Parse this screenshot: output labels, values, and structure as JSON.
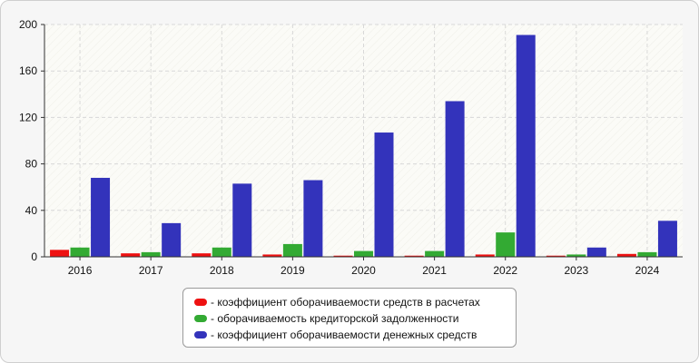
{
  "chart_data": {
    "type": "bar",
    "categories": [
      "2016",
      "2017",
      "2018",
      "2019",
      "2020",
      "2021",
      "2022",
      "2023",
      "2024"
    ],
    "series": [
      {
        "name": "- коэффициент оборачиваемости средств в расчетах",
        "color": "#ee1111",
        "values": [
          6,
          3,
          3,
          2,
          1,
          1,
          2,
          1,
          2.5
        ]
      },
      {
        "name": "- оборачиваемость кредиторской задолженности",
        "color": "#33aa33",
        "values": [
          8,
          4,
          8,
          11,
          5,
          5,
          21,
          2,
          4
        ]
      },
      {
        "name": "- коэффициент оборачиваемости денежных средств",
        "color": "#3333bb",
        "values": [
          68,
          29,
          63,
          66,
          107,
          134,
          191,
          8,
          31
        ]
      }
    ],
    "ylim": [
      0,
      200
    ],
    "yticks": [
      "0",
      "40",
      "80",
      "120",
      "160",
      "200"
    ],
    "grid": true,
    "legend_position": "bottom"
  }
}
